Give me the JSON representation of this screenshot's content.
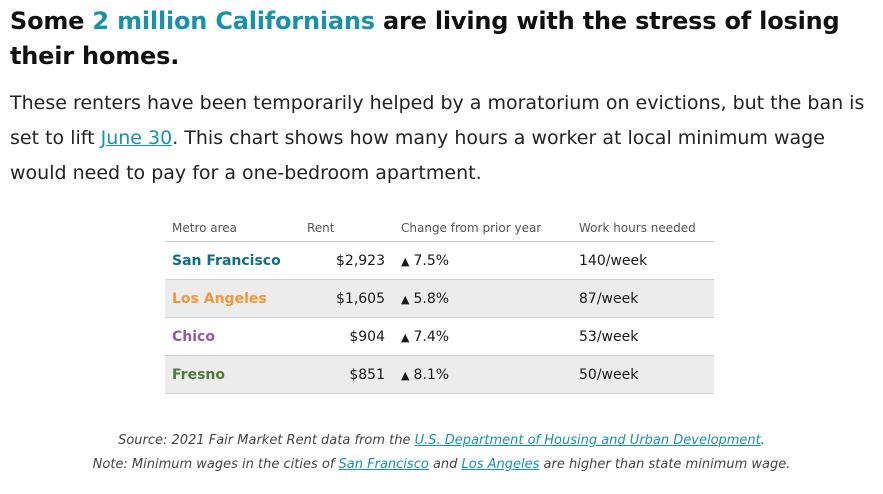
{
  "headline": {
    "before": "Some ",
    "highlight": "2 million Californians",
    "after": " are living with the stress of losing their homes."
  },
  "dek": {
    "text1": "These renters have been temporarily helped by a moratorium on evictions, but the ban is set to lift ",
    "link": "June 30",
    "text2": ". This chart shows how many hours a worker at local minimum wage would need to pay for a one-bedroom apartment."
  },
  "chart_data": {
    "type": "table",
    "columns": [
      "Metro area",
      "Rent",
      "Change from prior year",
      "Work hours needed"
    ],
    "rows": [
      {
        "metro": "San Francisco",
        "rent": "$2,923",
        "change": "7.5%",
        "hours": "140/week",
        "color": "#0e6e86"
      },
      {
        "metro": "Los Angeles",
        "rent": "$1,605",
        "change": "5.8%",
        "hours": "87/week",
        "color": "#f2963b"
      },
      {
        "metro": "Chico",
        "rent": "$904",
        "change": "7.4%",
        "hours": "53/week",
        "color": "#8d5aa6"
      },
      {
        "metro": "Fresno",
        "rent": "$851",
        "change": "8.1%",
        "hours": "50/week",
        "color": "#4c7a3a"
      }
    ],
    "change_icon": "up-triangle-icon"
  },
  "notes": {
    "source_prefix": "Source: 2021 Fair Market Rent data from the ",
    "source_link": "U.S. Department of Housing and Urban Development",
    "source_suffix": ".",
    "note_prefix": "Note: Minimum wages in the cities of ",
    "note_link1": "San Francisco",
    "note_mid": " and ",
    "note_link2": "Los Angeles",
    "note_suffix": " are higher than state minimum wage."
  },
  "colors": {
    "accent": "#1b91a8",
    "row_shade": "#ececec"
  }
}
